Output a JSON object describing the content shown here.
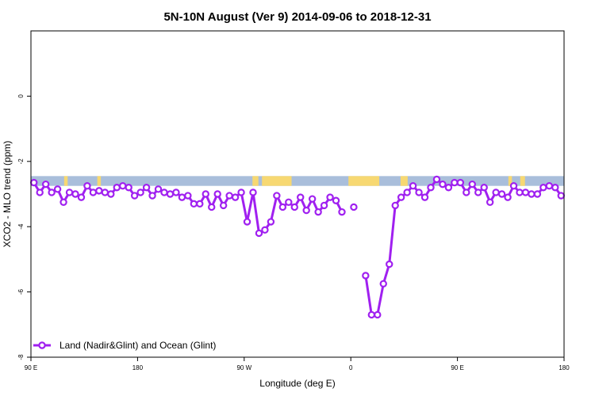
{
  "chart_data": {
    "type": "line",
    "title": "5N-10N August (Ver 9)   2014-09-06 to 2018-12-31",
    "xlabel": "Longitude (deg E)",
    "ylabel": "XCO2 - MLO trend (ppm)",
    "xlim": [
      90,
      540
    ],
    "ylim": [
      -8,
      2
    ],
    "x_ticks": [
      {
        "value": 90,
        "label": "90 E"
      },
      {
        "value": 180,
        "label": "180"
      },
      {
        "value": 270,
        "label": "90 W"
      },
      {
        "value": 360,
        "label": "0"
      },
      {
        "value": 450,
        "label": "90 E"
      },
      {
        "value": 540,
        "label": "180"
      }
    ],
    "y_ticks": [
      {
        "value": 0,
        "label": "0"
      },
      {
        "value": -2,
        "label": "-2"
      },
      {
        "value": -4,
        "label": "-4"
      },
      {
        "value": -6,
        "label": "-6"
      },
      {
        "value": -8,
        "label": "-8"
      }
    ],
    "grid": false,
    "legend": {
      "position": "bottom-left"
    },
    "colors": {
      "series": "#a020f0",
      "ocean": "#a9bedb",
      "land": "#f7d872"
    },
    "band": {
      "ymin": -2.75,
      "ymax": -2.45
    },
    "land_segments": [
      [
        118,
        121
      ],
      [
        146,
        149
      ],
      [
        277,
        282
      ],
      [
        285,
        310
      ],
      [
        358,
        384
      ],
      [
        402,
        408
      ],
      [
        493,
        496
      ],
      [
        503,
        507
      ]
    ],
    "series": [
      {
        "name": "Land (Nadir&Glint) and Ocean (Glint)",
        "segments": [
          [
            [
              92.5,
              -2.65
            ],
            [
              97.5,
              -2.95
            ],
            [
              102.5,
              -2.7
            ],
            [
              107.5,
              -2.95
            ],
            [
              112.5,
              -2.85
            ],
            [
              117.5,
              -3.25
            ],
            [
              122.5,
              -2.95
            ],
            [
              127.5,
              -3.0
            ],
            [
              132.5,
              -3.1
            ],
            [
              137.5,
              -2.75
            ],
            [
              142.5,
              -2.95
            ],
            [
              147.5,
              -2.9
            ],
            [
              152.5,
              -2.95
            ],
            [
              157.5,
              -3.0
            ],
            [
              162.5,
              -2.8
            ],
            [
              167.5,
              -2.75
            ],
            [
              172.5,
              -2.8
            ],
            [
              177.5,
              -3.05
            ],
            [
              182.5,
              -2.95
            ],
            [
              187.5,
              -2.8
            ],
            [
              192.5,
              -3.05
            ],
            [
              197.5,
              -2.85
            ],
            [
              202.5,
              -2.95
            ],
            [
              207.5,
              -3.0
            ],
            [
              212.5,
              -2.95
            ],
            [
              217.5,
              -3.1
            ],
            [
              222.5,
              -3.05
            ],
            [
              227.5,
              -3.3
            ],
            [
              232.5,
              -3.3
            ],
            [
              237.5,
              -3.0
            ],
            [
              242.5,
              -3.4
            ],
            [
              247.5,
              -3.0
            ],
            [
              252.5,
              -3.35
            ],
            [
              257.5,
              -3.05
            ],
            [
              262.5,
              -3.1
            ],
            [
              267.5,
              -2.95
            ],
            [
              272.5,
              -3.85
            ],
            [
              277.5,
              -2.95
            ],
            [
              282.5,
              -4.2
            ],
            [
              287.5,
              -4.1
            ],
            [
              292.5,
              -3.85
            ],
            [
              297.5,
              -3.05
            ],
            [
              302.5,
              -3.4
            ],
            [
              307.5,
              -3.25
            ],
            [
              312.5,
              -3.4
            ],
            [
              317.5,
              -3.1
            ],
            [
              322.5,
              -3.5
            ],
            [
              327.5,
              -3.15
            ],
            [
              332.5,
              -3.55
            ],
            [
              337.5,
              -3.35
            ],
            [
              342.5,
              -3.1
            ],
            [
              347.5,
              -3.2
            ],
            [
              352.5,
              -3.55
            ]
          ],
          [
            [
              362.5,
              -3.4
            ]
          ],
          [
            [
              372.5,
              -5.5
            ],
            [
              377.5,
              -6.7
            ],
            [
              382.5,
              -6.7
            ],
            [
              387.5,
              -5.75
            ],
            [
              392.5,
              -5.15
            ],
            [
              397.5,
              -3.35
            ],
            [
              402.5,
              -3.1
            ],
            [
              407.5,
              -2.95
            ],
            [
              412.5,
              -2.75
            ],
            [
              417.5,
              -2.95
            ],
            [
              422.5,
              -3.1
            ],
            [
              427.5,
              -2.8
            ],
            [
              432.5,
              -2.55
            ],
            [
              437.5,
              -2.7
            ],
            [
              442.5,
              -2.8
            ],
            [
              447.5,
              -2.65
            ],
            [
              452.5,
              -2.65
            ],
            [
              457.5,
              -2.95
            ],
            [
              462.5,
              -2.7
            ],
            [
              467.5,
              -2.95
            ],
            [
              472.5,
              -2.8
            ],
            [
              477.5,
              -3.25
            ],
            [
              482.5,
              -2.95
            ],
            [
              487.5,
              -3.0
            ],
            [
              492.5,
              -3.1
            ],
            [
              497.5,
              -2.75
            ],
            [
              502.5,
              -2.95
            ],
            [
              507.5,
              -2.95
            ],
            [
              512.5,
              -3.0
            ],
            [
              517.5,
              -3.0
            ],
            [
              522.5,
              -2.8
            ],
            [
              527.5,
              -2.75
            ],
            [
              532.5,
              -2.8
            ],
            [
              537.5,
              -3.05
            ]
          ]
        ]
      }
    ]
  }
}
